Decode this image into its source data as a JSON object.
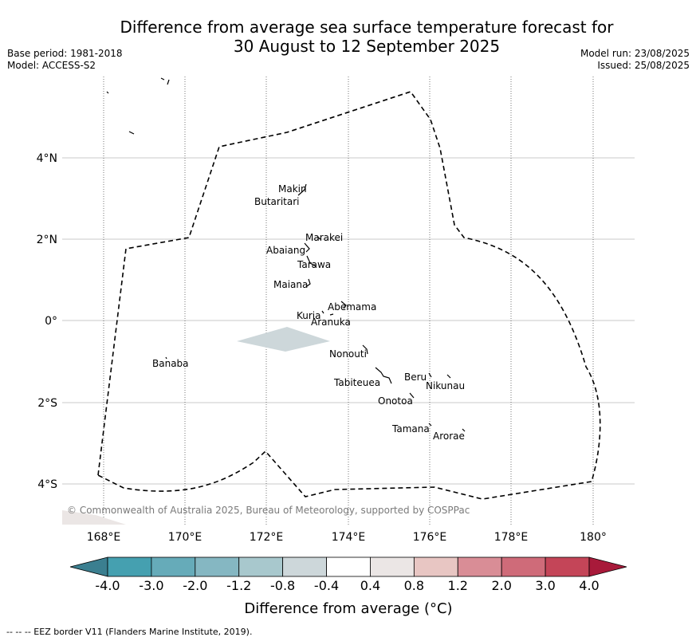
{
  "title_line1": "Difference from average sea surface temperature forecast for",
  "title_line2": "30 August to 12 September 2025",
  "meta_left": [
    "Base period: 1981-2018",
    "Model: ACCESS-S2"
  ],
  "meta_right": [
    "Model run: 23/08/2025",
    "Issued: 25/08/2025"
  ],
  "map": {
    "lon_ticks": [
      "168°E",
      "170°E",
      "172°E",
      "174°E",
      "176°E",
      "178°E",
      "180°"
    ],
    "lat_ticks": [
      "4°N",
      "2°N",
      "0°",
      "2°S",
      "4°S"
    ],
    "places": [
      {
        "name": "Makin",
        "lon": 172.9,
        "lat": 3.3
      },
      {
        "name": "Butaritari",
        "lon": 172.9,
        "lat": 3.1
      },
      {
        "name": "Marakei",
        "lon": 173.3,
        "lat": 2.0
      },
      {
        "name": "Abaiang",
        "lon": 172.9,
        "lat": 1.8
      },
      {
        "name": "Tarawa",
        "lon": 173.0,
        "lat": 1.4
      },
      {
        "name": "Maiana",
        "lon": 173.0,
        "lat": 0.95
      },
      {
        "name": "Abemama",
        "lon": 173.85,
        "lat": 0.4
      },
      {
        "name": "Kuria",
        "lon": 173.4,
        "lat": 0.2
      },
      {
        "name": "Aranuka",
        "lon": 173.6,
        "lat": 0.15
      },
      {
        "name": "Nonouti",
        "lon": 174.4,
        "lat": -0.7
      },
      {
        "name": "Banaba",
        "lon": 169.5,
        "lat": -0.85
      },
      {
        "name": "Beru",
        "lon": 176.0,
        "lat": -1.35
      },
      {
        "name": "Nikunau",
        "lon": 176.45,
        "lat": -1.35
      },
      {
        "name": "Tabiteuea",
        "lon": 174.8,
        "lat": -1.3
      },
      {
        "name": "Onotoa",
        "lon": 175.55,
        "lat": -1.8
      },
      {
        "name": "Tamana",
        "lon": 176.0,
        "lat": -2.5
      },
      {
        "name": "Arorae",
        "lon": 176.8,
        "lat": -2.65
      }
    ],
    "credit": "© Commonwealth of Australia 2025, Bureau of Meteorology, supported by COSPPac"
  },
  "colorbar": {
    "ticks": [
      "-4.0",
      "-3.0",
      "-2.0",
      "-1.2",
      "-0.8",
      "-0.4",
      "0.4",
      "0.8",
      "1.2",
      "2.0",
      "3.0",
      "4.0"
    ],
    "colors": [
      "#3b7f90",
      "#45a0b0",
      "#66abb9",
      "#85b7c2",
      "#a8c8cd",
      "#cdd7da",
      "#ffffff",
      "#ebe6e5",
      "#e8c6c3",
      "#d98d96",
      "#cf6b79",
      "#c44558",
      "#a81a3a"
    ],
    "label": "Difference from average (°C)"
  },
  "footer": "-- -- -- EEZ border V11 (Flanders Marine Institute, 2019)."
}
